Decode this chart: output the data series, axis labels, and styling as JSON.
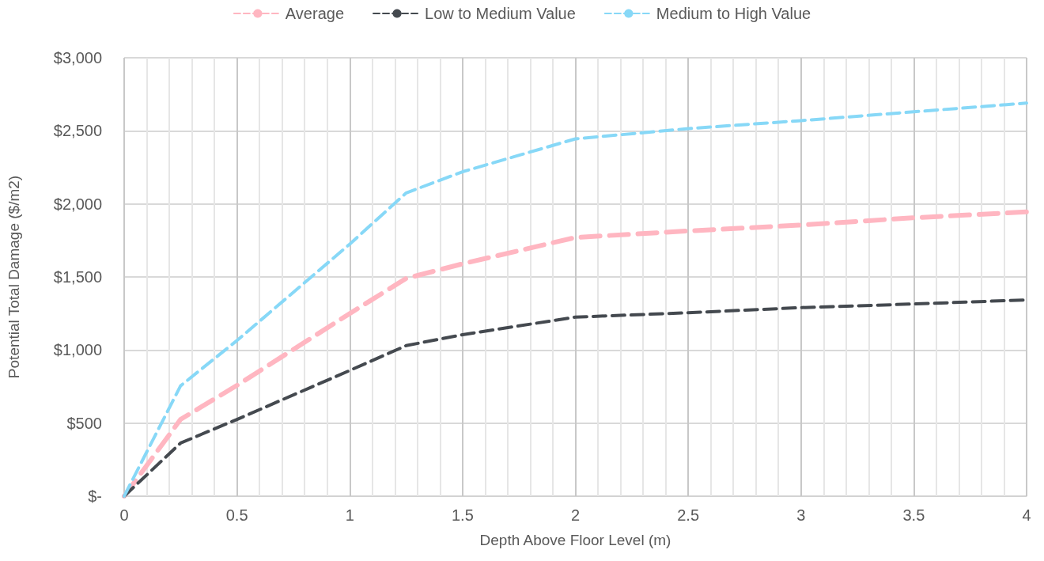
{
  "chart_data": {
    "type": "line",
    "xlabel": "Depth Above Floor Level (m)",
    "ylabel": "Potential Total Damage ($/m2)",
    "x": [
      0,
      0.25,
      0.5,
      1,
      1.25,
      1.5,
      2,
      2.5,
      3,
      3.5,
      4
    ],
    "series": [
      {
        "name": "Average",
        "color": "#ffb6c1",
        "values": [
          0,
          525,
          758,
          1250,
          1490,
          1590,
          1770,
          1815,
          1855,
          1905,
          1945
        ]
      },
      {
        "name": "Low to Medium Value",
        "color": "#44494f",
        "values": [
          0,
          363,
          525,
          860,
          1030,
          1105,
          1225,
          1255,
          1290,
          1315,
          1343
        ]
      },
      {
        "name": "Medium to High Value",
        "color": "#87d8f7",
        "values": [
          0,
          755,
          1065,
          1725,
          2075,
          2220,
          2445,
          2515,
          2570,
          2630,
          2690
        ]
      }
    ],
    "xlim": [
      0,
      4
    ],
    "xticks": [
      0,
      {
        "value": 0.1,
        "label": null
      },
      {
        "value": 0.2,
        "label": null
      },
      {
        "value": 0.3,
        "label": null
      },
      {
        "value": 0.4,
        "label": null
      },
      0.5,
      {
        "value": 0.6,
        "label": null
      },
      {
        "value": 0.7,
        "label": null
      },
      {
        "value": 0.8,
        "label": null
      },
      {
        "value": 0.9,
        "label": null
      },
      1,
      {
        "value": 1.1,
        "label": null
      },
      {
        "value": 1.2,
        "label": null
      },
      {
        "value": 1.3,
        "label": null
      },
      {
        "value": 1.4,
        "label": null
      },
      1.5,
      {
        "value": 1.6,
        "label": null
      },
      {
        "value": 1.7,
        "label": null
      },
      {
        "value": 1.8,
        "label": null
      },
      {
        "value": 1.9,
        "label": null
      },
      2,
      {
        "value": 2.1,
        "label": null
      },
      {
        "value": 2.2,
        "label": null
      },
      {
        "value": 2.3,
        "label": null
      },
      {
        "value": 2.4,
        "label": null
      },
      2.5,
      {
        "value": 2.6,
        "label": null
      },
      {
        "value": 2.7,
        "label": null
      },
      {
        "value": 2.8,
        "label": null
      },
      {
        "value": 2.9,
        "label": null
      },
      3,
      {
        "value": 3.1,
        "label": null
      },
      {
        "value": 3.2,
        "label": null
      },
      {
        "value": 3.3,
        "label": null
      },
      {
        "value": 3.4,
        "label": null
      },
      3.5,
      {
        "value": 3.6,
        "label": null
      },
      {
        "value": 3.7,
        "label": null
      },
      {
        "value": 3.8,
        "label": null
      },
      {
        "value": 3.9,
        "label": null
      },
      4
    ],
    "ylim": [
      0,
      3000
    ],
    "yticks": [
      {
        "value": 0,
        "label": "$-"
      },
      {
        "value": 500,
        "label": "$500"
      },
      {
        "value": 1000,
        "label": "$1,000"
      },
      {
        "value": 1500,
        "label": "$1,500"
      },
      {
        "value": 2000,
        "label": "$2,000"
      },
      {
        "value": 2500,
        "label": "$2,500"
      },
      {
        "value": 3000,
        "label": "$3,000"
      }
    ],
    "grid": true,
    "legend": "top",
    "marker": "none",
    "line_style": "dashed"
  }
}
